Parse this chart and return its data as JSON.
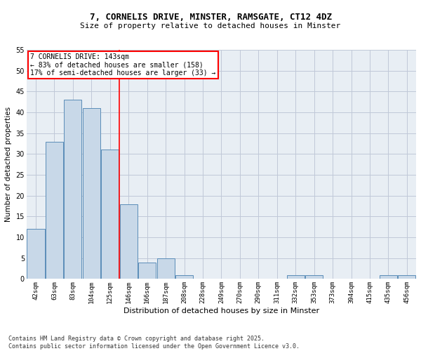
{
  "title_line1": "7, CORNELIS DRIVE, MINSTER, RAMSGATE, CT12 4DZ",
  "title_line2": "Size of property relative to detached houses in Minster",
  "xlabel": "Distribution of detached houses by size in Minster",
  "ylabel": "Number of detached properties",
  "categories": [
    "42sqm",
    "63sqm",
    "83sqm",
    "104sqm",
    "125sqm",
    "146sqm",
    "166sqm",
    "187sqm",
    "208sqm",
    "228sqm",
    "249sqm",
    "270sqm",
    "290sqm",
    "311sqm",
    "332sqm",
    "353sqm",
    "373sqm",
    "394sqm",
    "415sqm",
    "435sqm",
    "456sqm"
  ],
  "values": [
    12,
    33,
    43,
    41,
    31,
    18,
    4,
    5,
    1,
    0,
    0,
    0,
    0,
    0,
    1,
    1,
    0,
    0,
    0,
    1,
    1
  ],
  "bar_color": "#c8d8e8",
  "bar_edge_color": "#5b8db8",
  "grid_color": "#c0c8d8",
  "background_color": "#e8eef4",
  "red_line_index": 5,
  "annotation_title": "7 CORNELIS DRIVE: 143sqm",
  "annotation_line2": "← 83% of detached houses are smaller (158)",
  "annotation_line3": "17% of semi-detached houses are larger (33) →",
  "footer_line1": "Contains HM Land Registry data © Crown copyright and database right 2025.",
  "footer_line2": "Contains public sector information licensed under the Open Government Licence v3.0.",
  "ylim": [
    0,
    55
  ],
  "yticks": [
    0,
    5,
    10,
    15,
    20,
    25,
    30,
    35,
    40,
    45,
    50,
    55
  ]
}
